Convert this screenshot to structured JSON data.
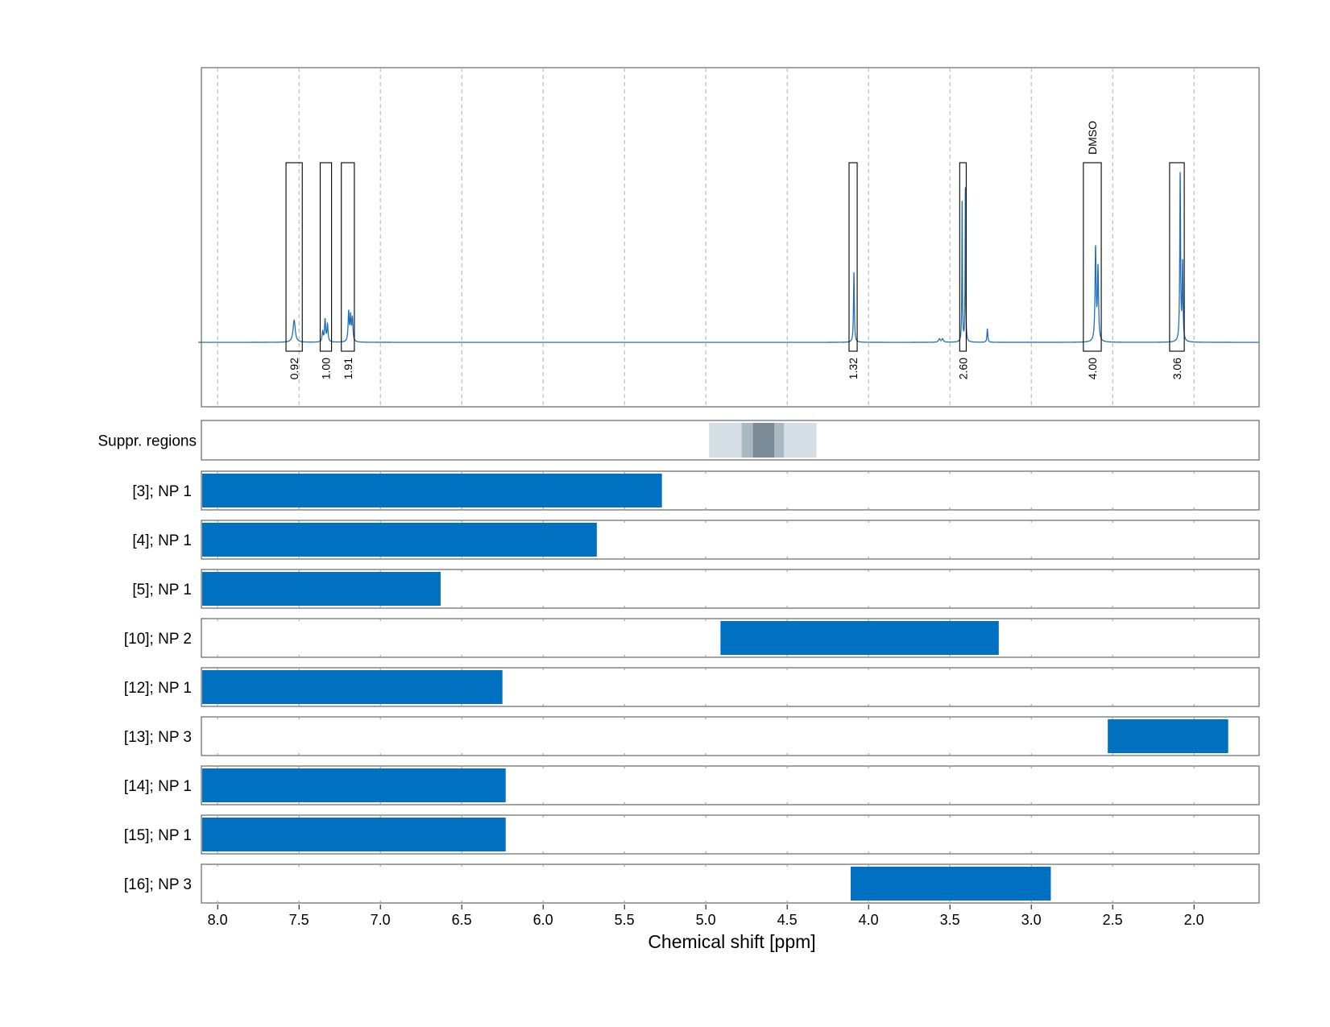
{
  "chart_data": {
    "type": "line",
    "xlabel": "Chemical shift [ppm]",
    "xlim": [
      8.1,
      1.6
    ],
    "x_reversed": true,
    "x_ticks": [
      "8.0",
      "7.5",
      "7.0",
      "6.5",
      "6.0",
      "5.5",
      "5.0",
      "4.5",
      "4.0",
      "3.5",
      "3.0",
      "2.5",
      "2.0"
    ],
    "grid": "vertical dashed",
    "spectrum": {
      "baseline": 0,
      "peaks": [
        {
          "x": 7.53,
          "height": 0.13,
          "width": 0.008
        },
        {
          "x": 7.355,
          "height": 0.06,
          "width": 0.004
        },
        {
          "x": 7.34,
          "height": 0.13,
          "width": 0.004
        },
        {
          "x": 7.325,
          "height": 0.1,
          "width": 0.004
        },
        {
          "x": 7.195,
          "height": 0.17,
          "width": 0.004
        },
        {
          "x": 7.183,
          "height": 0.14,
          "width": 0.004
        },
        {
          "x": 7.172,
          "height": 0.13,
          "width": 0.004
        },
        {
          "x": 4.09,
          "height": 0.41,
          "width": 0.003
        },
        {
          "x": 3.565,
          "height": 0.02,
          "width": 0.006
        },
        {
          "x": 3.545,
          "height": 0.02,
          "width": 0.006
        },
        {
          "x": 3.425,
          "height": 0.82,
          "width": 0.002
        },
        {
          "x": 3.405,
          "height": 0.9,
          "width": 0.002
        },
        {
          "x": 3.27,
          "height": 0.08,
          "width": 0.003
        },
        {
          "x": 2.605,
          "height": 0.54,
          "width": 0.004
        },
        {
          "x": 2.59,
          "height": 0.42,
          "width": 0.004
        },
        {
          "x": 2.085,
          "height": 0.98,
          "width": 0.003
        },
        {
          "x": 2.07,
          "height": 0.45,
          "width": 0.003
        }
      ]
    },
    "integration_regions": [
      {
        "x_start": 7.58,
        "x_end": 7.48,
        "label": "0.92",
        "annotation": ""
      },
      {
        "x_start": 7.37,
        "x_end": 7.3,
        "label": "1.00",
        "annotation": ""
      },
      {
        "x_start": 7.24,
        "x_end": 7.16,
        "label": "1.91",
        "annotation": ""
      },
      {
        "x_start": 4.12,
        "x_end": 4.07,
        "label": "1.32",
        "annotation": ""
      },
      {
        "x_start": 3.44,
        "x_end": 3.4,
        "label": "2.60",
        "annotation": ""
      },
      {
        "x_start": 2.68,
        "x_end": 2.57,
        "label": "4.00",
        "annotation": "DMSO"
      },
      {
        "x_start": 2.15,
        "x_end": 2.06,
        "label": "3.06",
        "annotation": ""
      }
    ],
    "suppression_row": {
      "label": "Suppr. regions",
      "bands": [
        {
          "x_start": 4.98,
          "x_end": 4.32,
          "shade": "#d6dee5"
        },
        {
          "x_start": 4.78,
          "x_end": 4.52,
          "shade": "#aab8c2"
        },
        {
          "x_start": 4.71,
          "x_end": 4.58,
          "shade": "#7a8a96"
        }
      ]
    },
    "ranges": [
      {
        "label": "[3]; NP 1",
        "x_start": 8.1,
        "x_end": 5.27
      },
      {
        "label": "[4]; NP 1",
        "x_start": 8.1,
        "x_end": 5.67
      },
      {
        "label": "[5]; NP 1",
        "x_start": 8.1,
        "x_end": 6.63
      },
      {
        "label": "[10]; NP 2",
        "x_start": 4.91,
        "x_end": 3.2
      },
      {
        "label": "[12]; NP 1",
        "x_start": 8.1,
        "x_end": 6.25
      },
      {
        "label": "[13]; NP 3",
        "x_start": 2.53,
        "x_end": 1.79
      },
      {
        "label": "[14]; NP 1",
        "x_start": 8.1,
        "x_end": 6.23
      },
      {
        "label": "[15]; NP 1",
        "x_start": 8.1,
        "x_end": 6.23
      },
      {
        "label": "[16]; NP 3",
        "x_start": 4.11,
        "x_end": 2.88
      }
    ],
    "colors": {
      "spectrum": "#1f6fb8",
      "range_bar": "#0070c0",
      "integral_label": "#ff0000",
      "grid": "#b0b0b0",
      "frame": "#666666"
    }
  }
}
